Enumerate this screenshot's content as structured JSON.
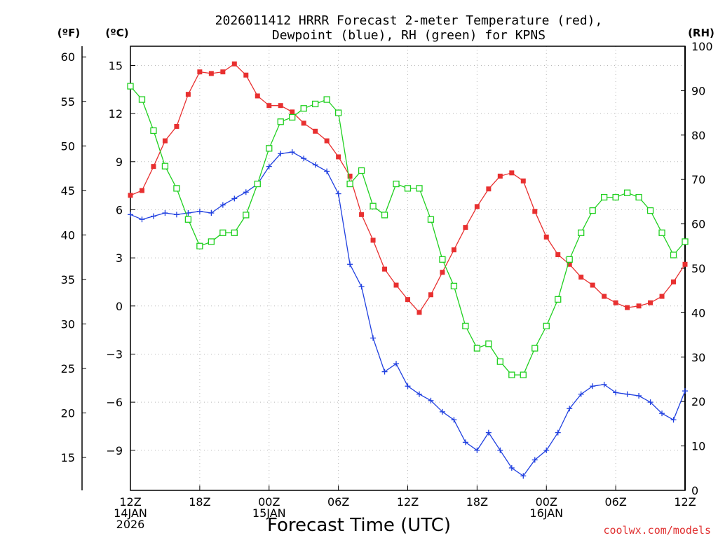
{
  "chart_data": {
    "type": "line",
    "title_line1": "2026011412 HRRR Forecast 2-meter Temperature (red),",
    "title_line2": "Dewpoint (blue), RH (green) for KPNS",
    "xlabel": "Forecast Time (UTC)",
    "watermark": "coolwx.com/models",
    "units": {
      "f": "(ºF)",
      "c": "(ºC)",
      "rh": "(RH)"
    },
    "x_range_hours": [
      0,
      48
    ],
    "c_range": [
      -11.5,
      16.2
    ],
    "f_range": [
      11.3,
      61.2
    ],
    "rh_range": [
      0,
      100
    ],
    "x_ticks": [
      {
        "hour": 0,
        "lines": [
          "12Z",
          "14JAN",
          "2026"
        ]
      },
      {
        "hour": 6,
        "lines": [
          "18Z"
        ]
      },
      {
        "hour": 12,
        "lines": [
          "00Z",
          "15JAN"
        ]
      },
      {
        "hour": 18,
        "lines": [
          "06Z"
        ]
      },
      {
        "hour": 24,
        "lines": [
          "12Z"
        ]
      },
      {
        "hour": 30,
        "lines": [
          "18Z"
        ]
      },
      {
        "hour": 36,
        "lines": [
          "00Z",
          "16JAN"
        ]
      },
      {
        "hour": 42,
        "lines": [
          "06Z"
        ]
      },
      {
        "hour": 48,
        "lines": [
          "12Z"
        ]
      }
    ],
    "c_ticks": [
      "15",
      "12",
      "9",
      "6",
      "3",
      "0",
      "−3",
      "−6",
      "−9"
    ],
    "f_ticks": [
      "60",
      "55",
      "50",
      "45",
      "40",
      "35",
      "30",
      "25",
      "20",
      "15"
    ],
    "rh_ticks": [
      "0",
      "10",
      "20",
      "30",
      "40",
      "50",
      "60",
      "70",
      "80",
      "90",
      "100"
    ],
    "series": [
      {
        "name": "Temperature (°C)",
        "color": "#e83030",
        "marker": "filled-square",
        "values": [
          6.9,
          7.2,
          8.7,
          10.3,
          11.2,
          13.2,
          14.6,
          14.5,
          14.6,
          15.1,
          14.4,
          13.1,
          12.5,
          12.5,
          12.1,
          11.4,
          10.9,
          10.3,
          9.3,
          8.1,
          5.7,
          4.1,
          2.3,
          1.3,
          0.4,
          -0.4,
          0.7,
          2.1,
          3.5,
          4.9,
          6.2,
          7.3,
          8.1,
          8.3,
          7.8,
          5.9,
          4.3,
          3.2,
          2.6,
          1.8,
          1.3,
          0.6,
          0.2,
          -0.1,
          0.0,
          0.2,
          0.6,
          1.5,
          2.6
        ]
      },
      {
        "name": "Dewpoint (°C)",
        "color": "#2040e0",
        "marker": "plus",
        "values": [
          5.7,
          5.4,
          5.6,
          5.8,
          5.7,
          5.8,
          5.9,
          5.8,
          6.3,
          6.7,
          7.1,
          7.6,
          8.7,
          9.5,
          9.6,
          9.2,
          8.8,
          8.4,
          7.0,
          2.6,
          1.2,
          -2.0,
          -4.1,
          -3.6,
          -5.0,
          -5.5,
          -5.9,
          -6.6,
          -7.1,
          -8.5,
          -9.0,
          -7.9,
          -9.0,
          -10.1,
          -10.6,
          -9.6,
          -9.0,
          -7.9,
          -6.4,
          -5.5,
          -5.0,
          -4.9,
          -5.4,
          -5.5,
          -5.6,
          -6.0,
          -6.7,
          -7.1,
          -5.3
        ]
      },
      {
        "name": "RH (%)",
        "color": "#20d020",
        "marker": "open-square",
        "values": [
          91,
          88,
          81,
          73,
          68,
          61,
          55,
          56,
          58,
          58,
          62,
          69,
          77,
          83,
          84,
          86,
          87,
          88,
          85,
          69,
          72,
          64,
          62,
          69,
          68,
          68,
          61,
          52,
          46,
          37,
          32,
          33,
          29,
          26,
          26,
          32,
          37,
          43,
          52,
          58,
          63,
          66,
          66,
          67,
          66,
          63,
          58,
          53,
          56
        ]
      }
    ]
  }
}
